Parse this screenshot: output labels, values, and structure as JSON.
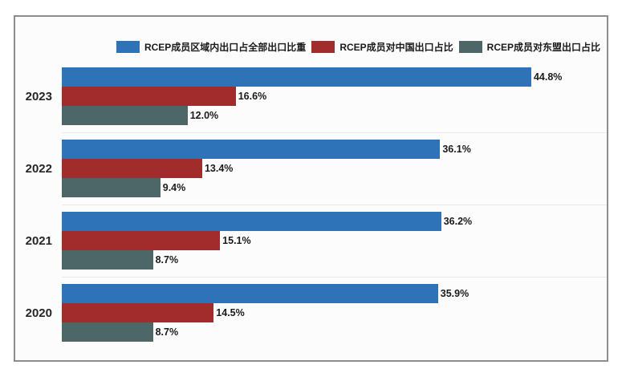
{
  "frame": {
    "border_color": "#8d8d8d",
    "background": "#fcfcfc",
    "gridline_color": "#e8e8e8"
  },
  "legend": [
    {
      "label": "RCEP成员区域内出口占全部出口比重",
      "color": "#2e72b8"
    },
    {
      "label": "RCEP成员对中国出口占比",
      "color": "#a02c2c"
    },
    {
      "label": "RCEP成员对东盟出口占比",
      "color": "#4c6766"
    }
  ],
  "chart_data": {
    "type": "bar",
    "orientation": "horizontal",
    "title": "",
    "xlabel": "",
    "ylabel": "",
    "categories": [
      "2023",
      "2022",
      "2021",
      "2020"
    ],
    "series": [
      {
        "name": "RCEP成员区域内出口占全部出口比重",
        "color": "#2e72b8",
        "values": [
          44.8,
          36.1,
          36.2,
          35.9
        ]
      },
      {
        "name": "RCEP成员对中国出口占比",
        "color": "#a02c2c",
        "values": [
          16.6,
          13.4,
          15.1,
          14.5
        ]
      },
      {
        "name": "RCEP成员对东盟出口占比",
        "color": "#4c6766",
        "values": [
          12.0,
          9.4,
          8.7,
          8.7
        ]
      }
    ],
    "data_label_format": "0.0%",
    "xlim": [
      0,
      52
    ],
    "grid": "category-separators-only",
    "legend_position": "top",
    "value_labels": [
      [
        "44.8%",
        "16.6%",
        "12.0%"
      ],
      [
        "36.1%",
        "13.4%",
        "9.4%"
      ],
      [
        "36.2%",
        "15.1%",
        "8.7%"
      ],
      [
        "35.9%",
        "14.5%",
        "8.7%"
      ]
    ]
  }
}
